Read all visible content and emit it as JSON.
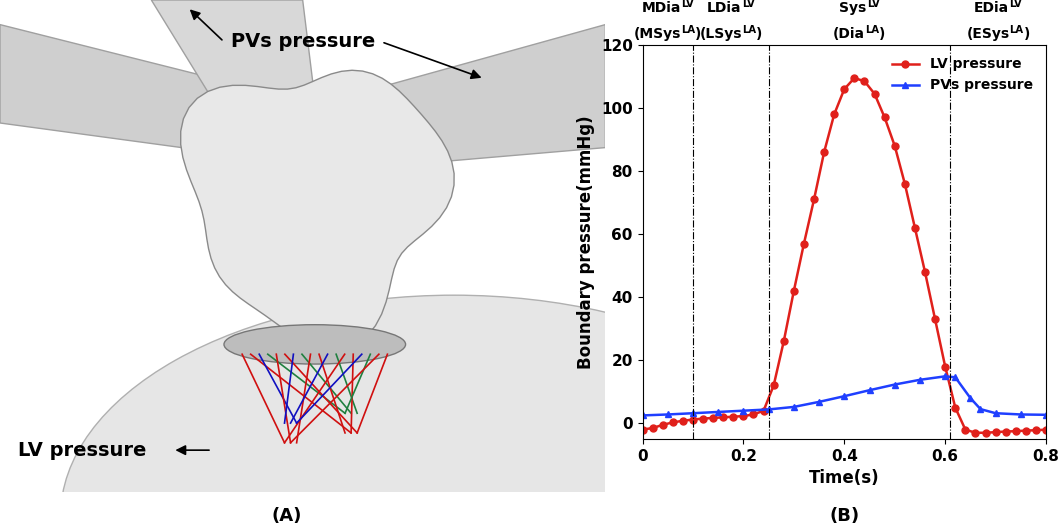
{
  "chart_data": {
    "type": "line",
    "xlabel": "Time(s)",
    "ylabel": "Boundary pressure(mmHg)",
    "xlim": [
      0,
      0.8
    ],
    "xticks": [
      0,
      0.2,
      0.4,
      0.6,
      0.8
    ],
    "ylim": [
      -5,
      120
    ],
    "yticks": [
      0,
      20,
      40,
      60,
      80,
      100,
      120
    ],
    "legend": "upper right",
    "phase_boundaries": [
      0.1,
      0.25,
      0.61
    ],
    "phases": [
      {
        "label": [
          {
            "text": "MDia"
          },
          {
            "text": "LV",
            "sup": true
          }
        ],
        "alt": [
          {
            "text": "(MSys"
          },
          {
            "text": "LA",
            "sup": true
          },
          {
            "text": ")"
          }
        ]
      },
      {
        "label": [
          {
            "text": "LDia"
          },
          {
            "text": "LV",
            "sup": true
          }
        ],
        "alt": [
          {
            "text": "(LSys"
          },
          {
            "text": "LA",
            "sup": true
          },
          {
            "text": ")"
          }
        ]
      },
      {
        "label": [
          {
            "text": "Sys"
          },
          {
            "text": "LV",
            "sup": true
          }
        ],
        "alt": [
          {
            "text": "(Dia"
          },
          {
            "text": "LA",
            "sup": true
          },
          {
            "text": ")"
          }
        ]
      },
      {
        "label": [
          {
            "text": "EDia"
          },
          {
            "text": "LV",
            "sup": true
          }
        ],
        "alt": [
          {
            "text": "(ESys"
          },
          {
            "text": "LA",
            "sup": true
          },
          {
            "text": ")"
          }
        ]
      }
    ],
    "series": [
      {
        "name": "LV pressure",
        "color": "#e0201b",
        "marker": "circle",
        "line_style": "solid",
        "x": [
          0,
          0.02,
          0.04,
          0.06,
          0.08,
          0.1,
          0.12,
          0.14,
          0.16,
          0.18,
          0.2,
          0.22,
          0.24,
          0.26,
          0.28,
          0.3,
          0.32,
          0.34,
          0.36,
          0.38,
          0.4,
          0.42,
          0.44,
          0.46,
          0.48,
          0.5,
          0.52,
          0.54,
          0.56,
          0.58,
          0.6,
          0.62,
          0.64,
          0.66,
          0.68,
          0.7,
          0.72,
          0.74,
          0.76,
          0.78,
          0.8
        ],
        "values": [
          -2,
          -1.5,
          -0.5,
          0.3,
          0.8,
          1.2,
          1.5,
          1.7,
          1.9,
          2.1,
          2.3,
          2.8,
          4,
          12,
          26,
          42,
          57,
          71,
          86,
          98,
          106,
          109.5,
          108.5,
          104.5,
          97,
          88,
          76,
          62,
          48,
          33,
          18,
          5,
          -2,
          -3,
          -3,
          -2.8,
          -2.6,
          -2.5,
          -2.3,
          -2.2,
          -2
        ]
      },
      {
        "name": "PVs pressure",
        "color": "#1f3fff",
        "marker": "triangle",
        "line_style": "solid",
        "x": [
          0,
          0.05,
          0.1,
          0.15,
          0.2,
          0.25,
          0.3,
          0.35,
          0.4,
          0.45,
          0.5,
          0.55,
          0.6,
          0.62,
          0.65,
          0.67,
          0.7,
          0.75,
          0.8
        ],
        "values": [
          2.5,
          2.8,
          3.2,
          3.6,
          4.0,
          4.4,
          5.2,
          6.8,
          8.6,
          10.5,
          12.3,
          13.8,
          14.9,
          14.6,
          8,
          4.5,
          3.2,
          2.8,
          2.7
        ]
      }
    ]
  },
  "panel_a": {
    "top_label": "PVs pressure",
    "bottom_label": "LV pressure"
  },
  "panel_labels": [
    "(A)",
    "(B)"
  ]
}
